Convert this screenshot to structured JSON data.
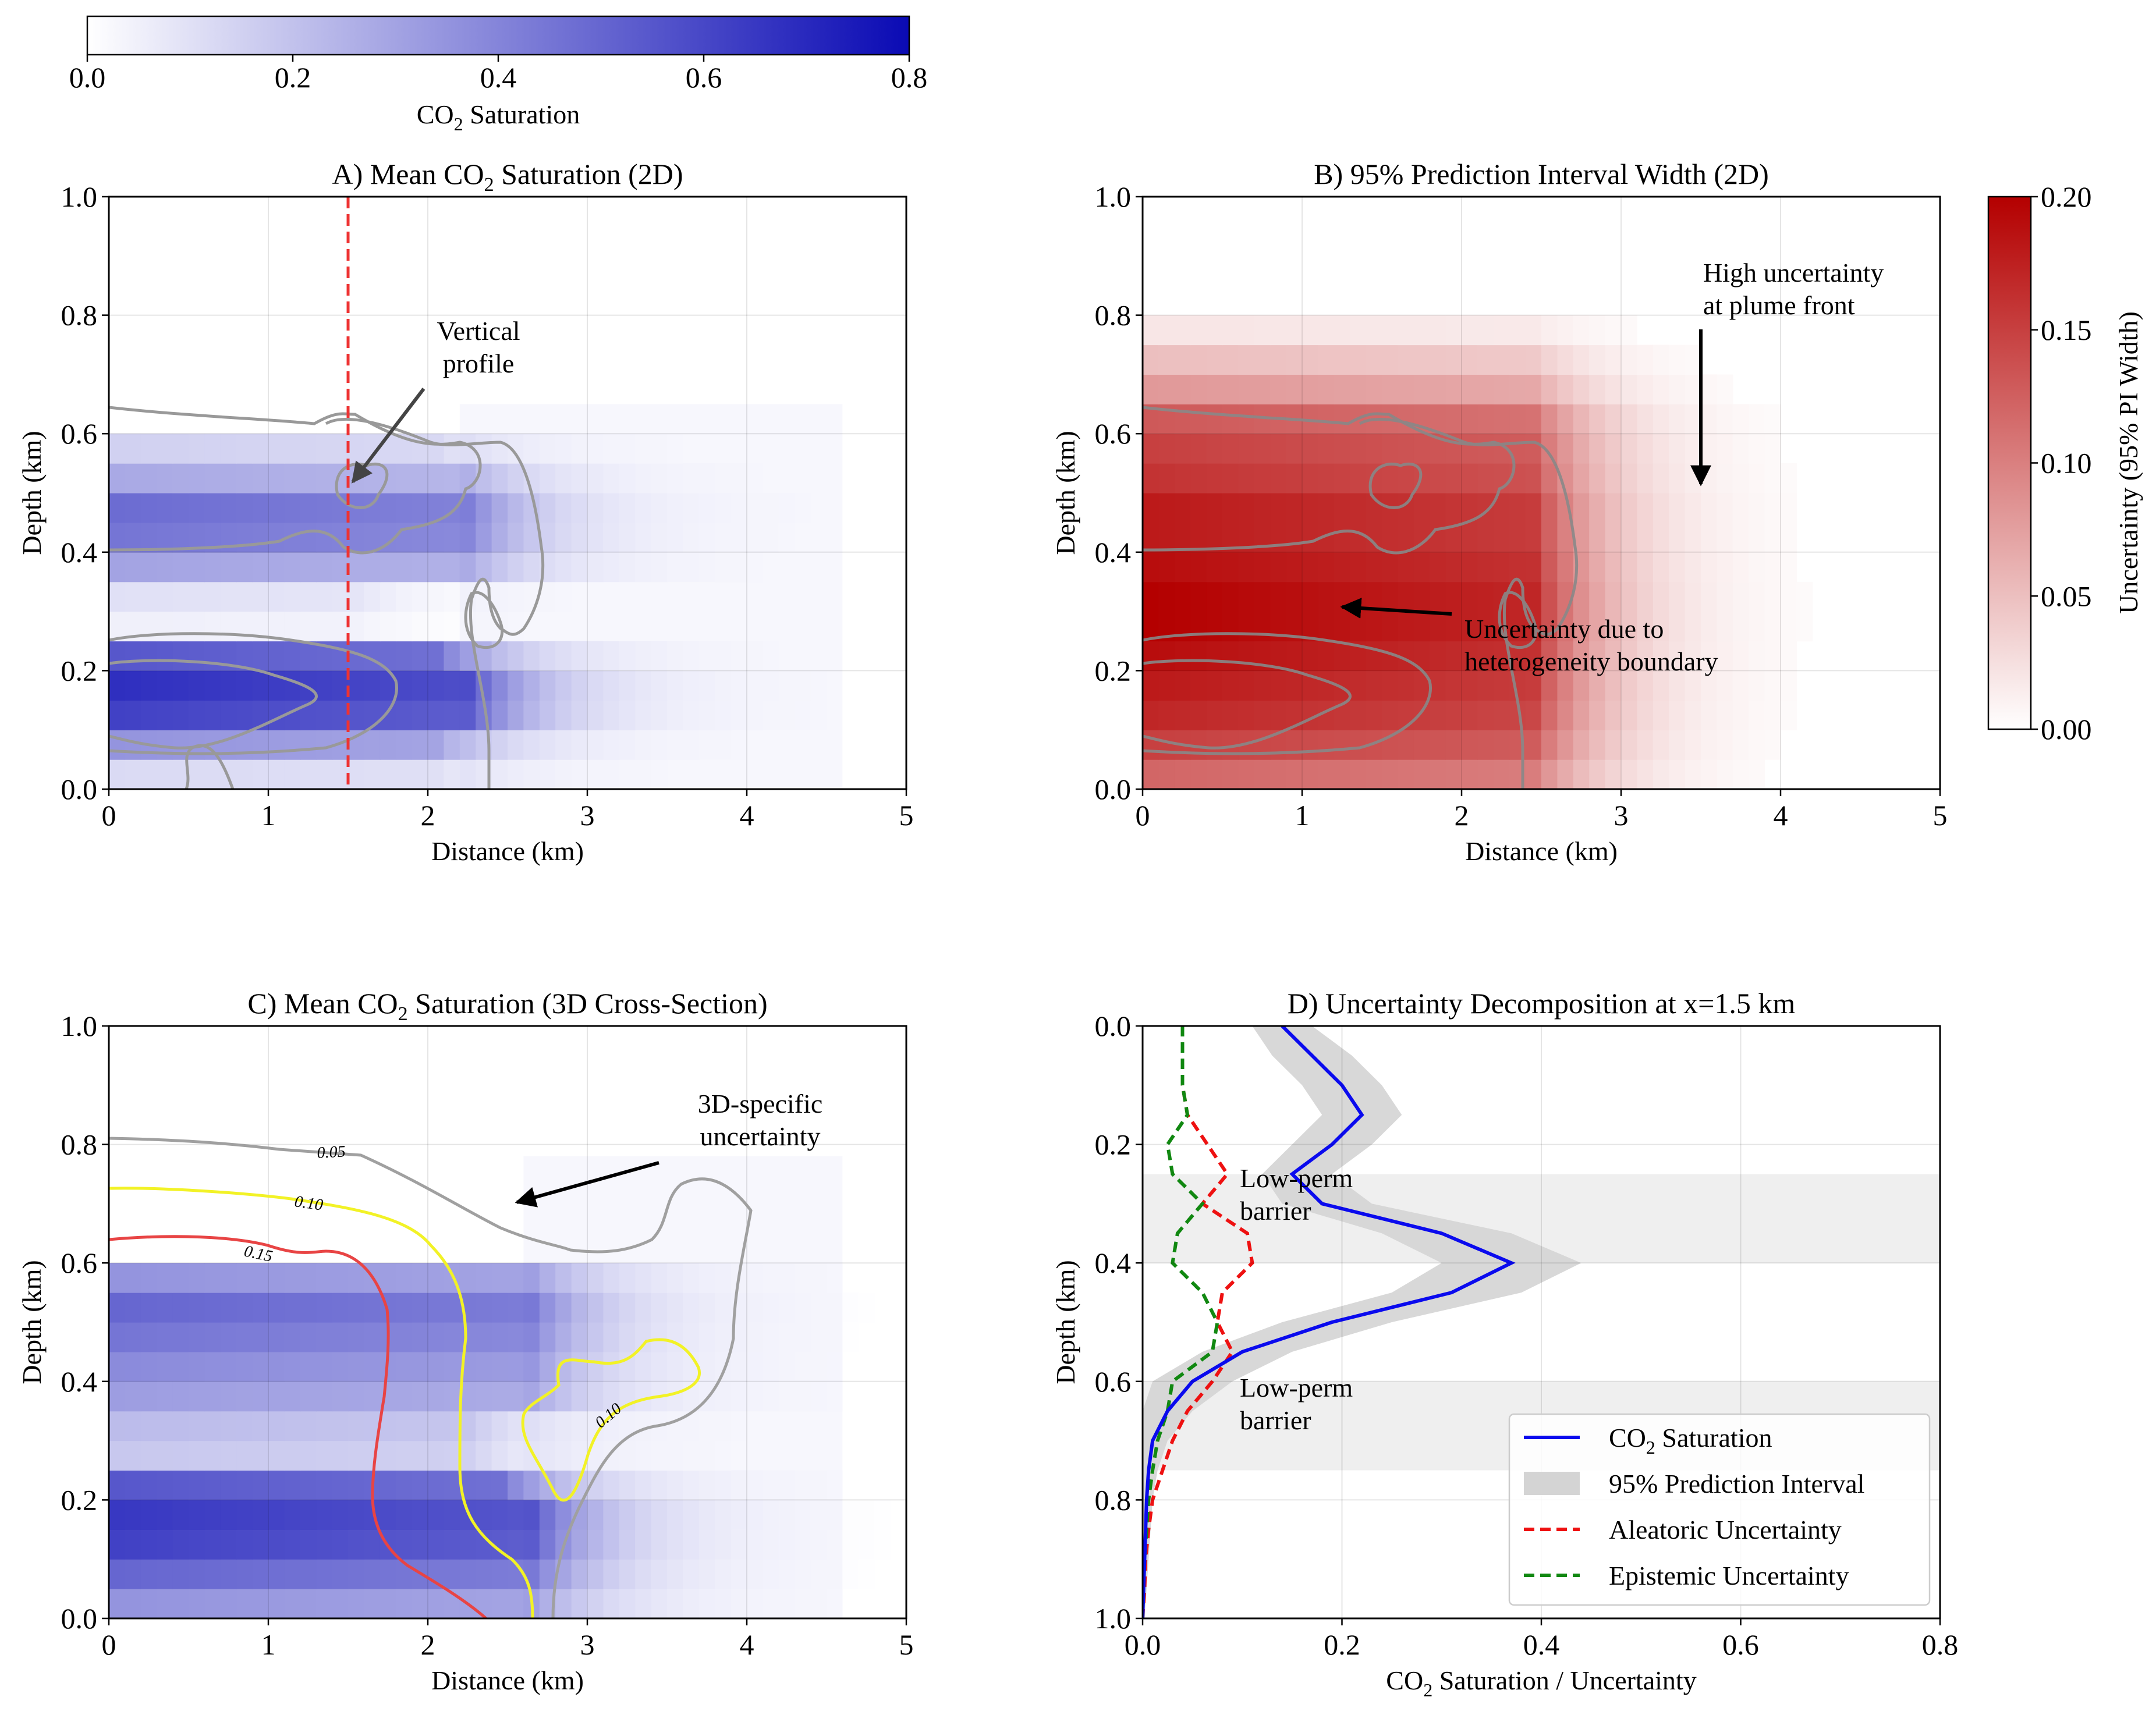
{
  "colorbar_co2": {
    "label_main": "CO",
    "label_sub": "2",
    "label_rest": " Saturation",
    "ticks": [
      "0.0",
      "0.2",
      "0.4",
      "0.6",
      "0.8"
    ],
    "range": [
      0,
      0.8
    ],
    "color_low": "#ffffff",
    "color_high": "#0a0ab4"
  },
  "colorbar_unc": {
    "label": "Uncertainty (95% PI Width)",
    "ticks": [
      "0.00",
      "0.05",
      "0.10",
      "0.15",
      "0.20"
    ],
    "range": [
      0,
      0.2
    ],
    "color_low": "#ffffff",
    "color_high": "#b40000"
  },
  "panelA": {
    "title_pre": "A) Mean CO",
    "title_sub": "2",
    "title_post": " Saturation (2D)",
    "xlabel": "Distance (km)",
    "ylabel": "Depth (km)",
    "xticks": [
      "0",
      "1",
      "2",
      "3",
      "4",
      "5"
    ],
    "yticks": [
      "0.0",
      "0.2",
      "0.4",
      "0.6",
      "0.8",
      "1.0"
    ],
    "annotation": "Vertical profile",
    "annotation_lines": [
      "Vertical",
      "profile"
    ],
    "annotation_color": "#ee1111"
  },
  "panelB": {
    "title": "B) 95% Prediction Interval Width (2D)",
    "xlabel": "Distance (km)",
    "ylabel": "Depth (km)",
    "xticks": [
      "0",
      "1",
      "2",
      "3",
      "4",
      "5"
    ],
    "yticks": [
      "0.0",
      "0.2",
      "0.4",
      "0.6",
      "0.8",
      "1.0"
    ],
    "annotation1_lines": [
      "High uncertainty",
      "at plume front"
    ],
    "annotation2_lines": [
      "Uncertainty due to",
      "heterogeneity boundary"
    ]
  },
  "panelC": {
    "title_pre": "C) Mean CO",
    "title_sub": "2",
    "title_post": " Saturation (3D Cross-Section)",
    "xlabel": "Distance (km)",
    "ylabel": "Depth (km)",
    "xticks": [
      "0",
      "1",
      "2",
      "3",
      "4",
      "5"
    ],
    "yticks": [
      "0.0",
      "0.2",
      "0.4",
      "0.6",
      "0.8",
      "1.0"
    ],
    "annotation_lines": [
      "3D-specific",
      "uncertainty"
    ],
    "contour_labels": [
      "0.05",
      "0.10",
      "0.15",
      "0.10"
    ],
    "contour_colors": {
      "c005": "#a0a0a0",
      "c010": "#f2f226",
      "c015": "#e84444"
    }
  },
  "panelD": {
    "title": "D) Uncertainty Decomposition at x=1.5 km",
    "xlabel_pre": "CO",
    "xlabel_sub": "2",
    "xlabel_post": " Saturation / Uncertainty",
    "ylabel": "Depth (km)",
    "xticks": [
      "0.0",
      "0.2",
      "0.4",
      "0.6",
      "0.8"
    ],
    "yticks": [
      "0.0",
      "0.2",
      "0.4",
      "0.6",
      "0.8",
      "1.0"
    ],
    "barrier_label_lines": [
      "Low-perm",
      "barrier"
    ],
    "legend": [
      {
        "pre": "CO",
        "sub": "2",
        "post": " Saturation"
      },
      {
        "pre": "95% Prediction Interval",
        "sub": "",
        "post": ""
      },
      {
        "pre": "Aleatoric Uncertainty",
        "sub": "",
        "post": ""
      },
      {
        "pre": "Epistemic Uncertainty",
        "sub": "",
        "post": ""
      }
    ],
    "colors": {
      "saturation": "#0a0aee",
      "interval": "#d4d4d4",
      "aleatoric": "#ee1111",
      "epistemic": "#118811",
      "barrier": "#efefef"
    }
  },
  "chart_data": [
    {
      "type": "heatmap",
      "title": "A) Mean CO2 Saturation (2D)",
      "xlabel": "Distance (km)",
      "ylabel": "Depth (km)",
      "xlim": [
        0,
        5
      ],
      "ylim": [
        0,
        1
      ],
      "grid": true,
      "colorbar": {
        "label": "CO2 Saturation",
        "range": [
          0,
          0.8
        ]
      },
      "vertical_profile_x": 1.5,
      "depth_bands": [
        {
          "y": [
            0.0,
            0.05
          ],
          "x_end": 2.0,
          "value": 0.12
        },
        {
          "y": [
            0.05,
            0.1
          ],
          "x_end": 2.0,
          "value": 0.35
        },
        {
          "y": [
            0.1,
            0.15
          ],
          "x_end": 2.2,
          "value": 0.62
        },
        {
          "y": [
            0.15,
            0.2
          ],
          "x_end": 2.2,
          "value": 0.68
        },
        {
          "y": [
            0.2,
            0.25
          ],
          "x_end": 2.0,
          "value": 0.55
        },
        {
          "y": [
            0.25,
            0.3
          ],
          "x_end": 1.5,
          "value": 0.05
        },
        {
          "y": [
            0.3,
            0.35
          ],
          "x_end": 1.5,
          "value": 0.1
        },
        {
          "y": [
            0.35,
            0.4
          ],
          "x_end": 2.2,
          "value": 0.3
        },
        {
          "y": [
            0.4,
            0.45
          ],
          "x_end": 2.2,
          "value": 0.45
        },
        {
          "y": [
            0.45,
            0.5
          ],
          "x_end": 2.2,
          "value": 0.48
        },
        {
          "y": [
            0.5,
            0.55
          ],
          "x_end": 2.2,
          "value": 0.28
        },
        {
          "y": [
            0.55,
            0.6
          ],
          "x_end": 2.0,
          "value": 0.15
        }
      ]
    },
    {
      "type": "heatmap",
      "title": "B) 95% Prediction Interval Width (2D)",
      "xlabel": "Distance (km)",
      "ylabel": "Depth (km)",
      "xlim": [
        0,
        5
      ],
      "ylim": [
        0,
        1
      ],
      "grid": true,
      "colorbar": {
        "label": "Uncertainty (95% PI Width)",
        "range": [
          0,
          0.2
        ]
      },
      "depth_bands": [
        {
          "y": [
            0.0,
            0.05
          ],
          "value": 0.12
        },
        {
          "y": [
            0.05,
            0.1
          ],
          "value": 0.15
        },
        {
          "y": [
            0.1,
            0.15
          ],
          "value": 0.17
        },
        {
          "y": [
            0.15,
            0.2
          ],
          "value": 0.18
        },
        {
          "y": [
            0.2,
            0.25
          ],
          "value": 0.19
        },
        {
          "y": [
            0.25,
            0.3
          ],
          "value": 0.2
        },
        {
          "y": [
            0.3,
            0.35
          ],
          "value": 0.2
        },
        {
          "y": [
            0.35,
            0.4
          ],
          "value": 0.19
        },
        {
          "y": [
            0.4,
            0.45
          ],
          "value": 0.18
        },
        {
          "y": [
            0.45,
            0.5
          ],
          "value": 0.18
        },
        {
          "y": [
            0.5,
            0.55
          ],
          "value": 0.16
        },
        {
          "y": [
            0.55,
            0.6
          ],
          "value": 0.15
        },
        {
          "y": [
            0.6,
            0.65
          ],
          "value": 0.13
        },
        {
          "y": [
            0.65,
            0.7
          ],
          "value": 0.08
        },
        {
          "y": [
            0.7,
            0.75
          ],
          "value": 0.05
        },
        {
          "y": [
            0.75,
            0.8
          ],
          "value": 0.02
        }
      ]
    },
    {
      "type": "heatmap",
      "title": "C) Mean CO2 Saturation (3D Cross-Section)",
      "xlabel": "Distance (km)",
      "ylabel": "Depth (km)",
      "xlim": [
        0,
        5
      ],
      "ylim": [
        0,
        1
      ],
      "grid": true,
      "contour_levels": [
        0.05,
        0.1,
        0.15
      ],
      "depth_bands": [
        {
          "y": [
            0.0,
            0.05
          ],
          "x_end": 2.6,
          "value": 0.35
        },
        {
          "y": [
            0.05,
            0.1
          ],
          "x_end": 2.6,
          "value": 0.5
        },
        {
          "y": [
            0.1,
            0.15
          ],
          "x_end": 2.6,
          "value": 0.62
        },
        {
          "y": [
            0.15,
            0.2
          ],
          "x_end": 2.6,
          "value": 0.65
        },
        {
          "y": [
            0.2,
            0.25
          ],
          "x_end": 2.4,
          "value": 0.55
        },
        {
          "y": [
            0.25,
            0.3
          ],
          "x_end": 2.2,
          "value": 0.18
        },
        {
          "y": [
            0.3,
            0.35
          ],
          "x_end": 2.2,
          "value": 0.22
        },
        {
          "y": [
            0.35,
            0.4
          ],
          "x_end": 2.6,
          "value": 0.32
        },
        {
          "y": [
            0.4,
            0.45
          ],
          "x_end": 2.6,
          "value": 0.38
        },
        {
          "y": [
            0.45,
            0.5
          ],
          "x_end": 2.6,
          "value": 0.45
        },
        {
          "y": [
            0.5,
            0.55
          ],
          "x_end": 2.6,
          "value": 0.5
        },
        {
          "y": [
            0.55,
            0.6
          ],
          "x_end": 2.6,
          "value": 0.35
        }
      ]
    },
    {
      "type": "line",
      "title": "D) Uncertainty Decomposition at x=1.5 km",
      "xlabel": "CO2 Saturation / Uncertainty",
      "ylabel": "Depth (km)",
      "xlim": [
        0,
        0.8
      ],
      "ylim": [
        1.0,
        0.0
      ],
      "grid": true,
      "legend_position": "lower-right",
      "barriers": [
        [
          0.25,
          0.4
        ],
        [
          0.6,
          0.75
        ]
      ],
      "series": [
        {
          "name": "CO2 Saturation",
          "depth": [
            0.0,
            0.05,
            0.1,
            0.15,
            0.2,
            0.25,
            0.3,
            0.35,
            0.4,
            0.45,
            0.5,
            0.55,
            0.6,
            0.65,
            0.7,
            0.75,
            0.8,
            0.85,
            0.9,
            0.95,
            1.0
          ],
          "values": [
            0.14,
            0.17,
            0.2,
            0.22,
            0.19,
            0.15,
            0.18,
            0.3,
            0.37,
            0.31,
            0.19,
            0.1,
            0.05,
            0.025,
            0.01,
            0.006,
            0.004,
            0.003,
            0.002,
            0.001,
            0.0
          ]
        },
        {
          "name": "95% Prediction Interval",
          "depth": [
            0.0,
            0.05,
            0.1,
            0.15,
            0.2,
            0.25,
            0.3,
            0.35,
            0.4,
            0.45,
            0.5,
            0.55,
            0.6,
            0.65,
            0.7,
            0.75,
            0.8,
            0.85,
            0.9,
            0.95,
            1.0
          ],
          "lower": [
            0.11,
            0.13,
            0.16,
            0.18,
            0.15,
            0.12,
            0.14,
            0.24,
            0.3,
            0.25,
            0.14,
            0.06,
            0.01,
            0.0,
            0.0,
            0.0,
            0.0,
            0.0,
            0.0,
            0.0,
            0.0
          ],
          "upper": [
            0.17,
            0.21,
            0.24,
            0.26,
            0.23,
            0.19,
            0.23,
            0.37,
            0.44,
            0.38,
            0.25,
            0.15,
            0.09,
            0.05,
            0.025,
            0.015,
            0.01,
            0.008,
            0.006,
            0.004,
            0.002
          ]
        },
        {
          "name": "Aleatoric Uncertainty",
          "depth": [
            0.0,
            0.05,
            0.1,
            0.15,
            0.2,
            0.25,
            0.3,
            0.35,
            0.4,
            0.45,
            0.5,
            0.55,
            0.6,
            0.65,
            0.7,
            0.75,
            0.8,
            0.85,
            0.9,
            0.95,
            1.0
          ],
          "values": [
            0.04,
            0.04,
            0.04,
            0.045,
            0.065,
            0.085,
            0.06,
            0.105,
            0.11,
            0.08,
            0.075,
            0.09,
            0.07,
            0.045,
            0.03,
            0.02,
            0.01,
            0.006,
            0.003,
            0.002,
            0.0
          ]
        },
        {
          "name": "Epistemic Uncertainty",
          "depth": [
            0.0,
            0.05,
            0.1,
            0.15,
            0.2,
            0.25,
            0.3,
            0.35,
            0.4,
            0.45,
            0.5,
            0.55,
            0.6,
            0.65,
            0.7,
            0.75,
            0.8,
            0.85,
            0.9,
            0.95,
            1.0
          ],
          "values": [
            0.04,
            0.04,
            0.04,
            0.045,
            0.025,
            0.03,
            0.06,
            0.035,
            0.03,
            0.06,
            0.075,
            0.07,
            0.03,
            0.025,
            0.015,
            0.01,
            0.006,
            0.004,
            0.002,
            0.001,
            0.0
          ]
        }
      ]
    }
  ]
}
